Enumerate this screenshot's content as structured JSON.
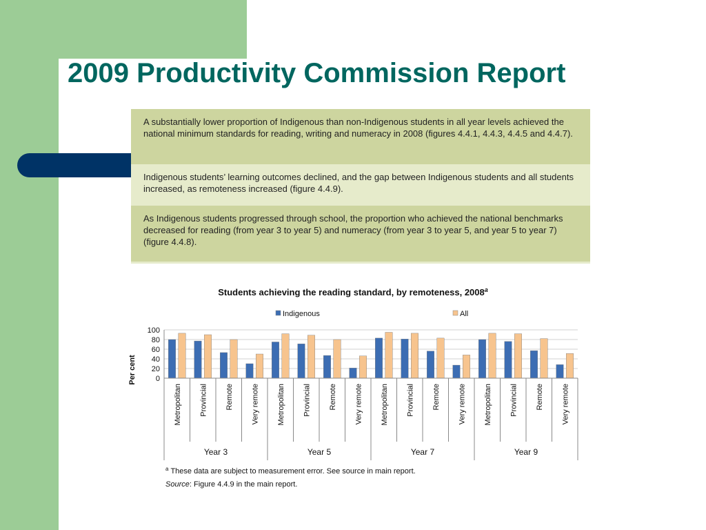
{
  "header": {
    "title": "2009 Productivity Commission Report"
  },
  "findings": [
    "A substantially lower proportion of Indigenous than non-Indigenous students in all year levels achieved the national minimum standards for reading, writing and numeracy in 2008 (figures 4.4.1, 4.4.3, 4.4.5 and 4.4.7).",
    "Indigenous students’ learning outcomes declined, and the gap between Indigenous students and all students increased, as remoteness increased (figure 4.4.9).",
    "As Indigenous students progressed through school, the proportion who achieved the national benchmarks decreased for reading (from year 3 to year 5) and numeracy (from year 3 to year 5, and year 5 to year 7) (figure 4.4.8)."
  ],
  "chart_data": {
    "type": "bar",
    "title": "Students achieving the reading standard, by remoteness, 2008",
    "title_superscript": "a",
    "ylabel": "Per cent",
    "categories": [
      "Metropolitan",
      "Provincial",
      "Remote",
      "Very remote",
      "Metropolitan",
      "Provincial",
      "Remote",
      "Very remote",
      "Metropolitan",
      "Provincial",
      "Remote",
      "Very remote",
      "Metropolitan",
      "Provincial",
      "Remote",
      "Very remote"
    ],
    "groups": [
      "Year 3",
      "Year 5",
      "Year 7",
      "Year 9"
    ],
    "series": [
      {
        "name": "Indigenous",
        "color": "#3c6db3",
        "values": [
          80,
          77,
          53,
          30,
          75,
          71,
          47,
          21,
          83,
          81,
          56,
          27,
          80,
          76,
          57,
          28
        ]
      },
      {
        "name": "All",
        "color": "#f7c48e",
        "values": [
          93,
          90,
          80,
          50,
          92,
          89,
          80,
          46,
          95,
          93,
          83,
          48,
          93,
          92,
          82,
          51
        ]
      }
    ],
    "ylim": [
      0,
      100
    ],
    "yticks": [
      0,
      20,
      40,
      60,
      80,
      100
    ],
    "footnote_marker": "a",
    "footnote": "These data are subject to measurement error. See source in main report.",
    "source_label": "Source",
    "source": ": Figure 4.4.9 in the main report."
  }
}
